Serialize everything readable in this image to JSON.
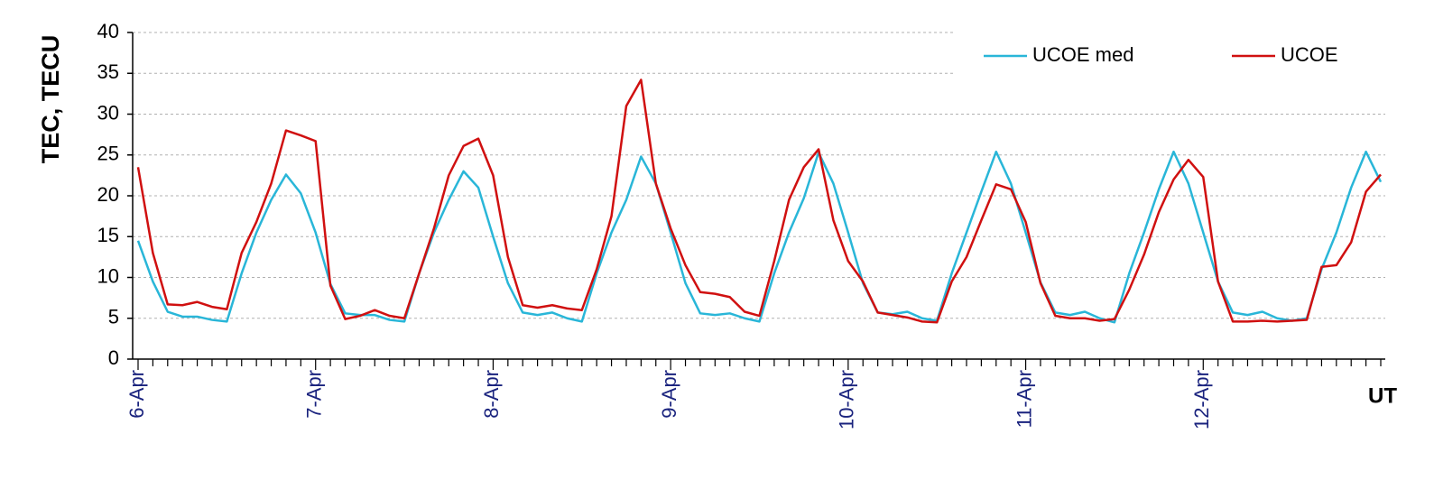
{
  "chart_data": {
    "type": "line",
    "ylabel": "TEC, TECU",
    "xlabel": "UT",
    "categories": [
      "6-Apr",
      null,
      null,
      null,
      null,
      null,
      null,
      null,
      null,
      null,
      null,
      null,
      "7-Apr",
      null,
      null,
      null,
      null,
      null,
      null,
      null,
      null,
      null,
      null,
      null,
      "8-Apr",
      null,
      null,
      null,
      null,
      null,
      null,
      null,
      null,
      null,
      null,
      null,
      "9-Apr",
      null,
      null,
      null,
      null,
      null,
      null,
      null,
      null,
      null,
      null,
      null,
      "10-Apr",
      null,
      null,
      null,
      null,
      null,
      null,
      null,
      null,
      null,
      null,
      null,
      "11-Apr",
      null,
      null,
      null,
      null,
      null,
      null,
      null,
      null,
      null,
      null,
      null,
      "12-Apr",
      null,
      null,
      null,
      null,
      null,
      null,
      null,
      null,
      null,
      null,
      null,
      null
    ],
    "series": [
      {
        "name": "UCOE med",
        "color": "#29b6d8",
        "values": [
          14.5,
          9.5,
          5.8,
          5.2,
          5.2,
          4.8,
          4.6,
          10.5,
          15.5,
          19.5,
          22.6,
          20.3,
          15.5,
          9.2,
          5.6,
          5.4,
          5.4,
          4.8,
          4.6,
          10.5,
          15.5,
          19.5,
          23,
          21,
          15,
          9.3,
          5.7,
          5.4,
          5.7,
          5,
          4.6,
          10.5,
          15.5,
          19.5,
          24.8,
          21.5,
          15.5,
          9.3,
          5.6,
          5.4,
          5.6,
          5,
          4.6,
          10.5,
          15.5,
          19.7,
          25.3,
          21.5,
          15.5,
          9.3,
          5.7,
          5.5,
          5.8,
          5,
          4.7,
          10.5,
          15.5,
          20.5,
          25.4,
          21.5,
          15.5,
          9.4,
          5.7,
          5.4,
          5.8,
          5,
          4.5,
          10.5,
          15.5,
          20.8,
          25.4,
          21.5,
          15.5,
          9.5,
          5.7,
          5.4,
          5.8,
          5,
          4.7,
          5,
          11,
          15.5,
          21,
          25.4,
          21.7
        ]
      },
      {
        "name": "UCOE",
        "color": "#d01010",
        "values": [
          23.5,
          13,
          6.7,
          6.6,
          7,
          6.4,
          6.1,
          13,
          16.8,
          21.5,
          28,
          27.4,
          26.7,
          9,
          4.9,
          5.3,
          6,
          5.3,
          5,
          10.5,
          16,
          22.5,
          26.1,
          27,
          22.5,
          12.5,
          6.6,
          6.3,
          6.6,
          6.2,
          6,
          11,
          17.5,
          31,
          34.2,
          21.5,
          16,
          11.5,
          8.2,
          8,
          7.6,
          5.8,
          5.3,
          12,
          19.5,
          23.5,
          25.7,
          17,
          12,
          9.5,
          5.7,
          5.4,
          5.1,
          4.6,
          4.5,
          9.5,
          12.5,
          17,
          21.4,
          20.8,
          16.8,
          9.3,
          5.3,
          5,
          5,
          4.7,
          4.9,
          8.5,
          12.8,
          18,
          22,
          24.4,
          22.3,
          9.5,
          4.6,
          4.6,
          4.7,
          4.6,
          4.7,
          4.8,
          11.3,
          11.5,
          14.3,
          20.5,
          22.6
        ]
      }
    ],
    "ylim": [
      0,
      40
    ],
    "yticks": [
      0,
      5,
      10,
      15,
      20,
      25,
      30,
      35,
      40
    ],
    "grid": true,
    "legend": "top right"
  }
}
